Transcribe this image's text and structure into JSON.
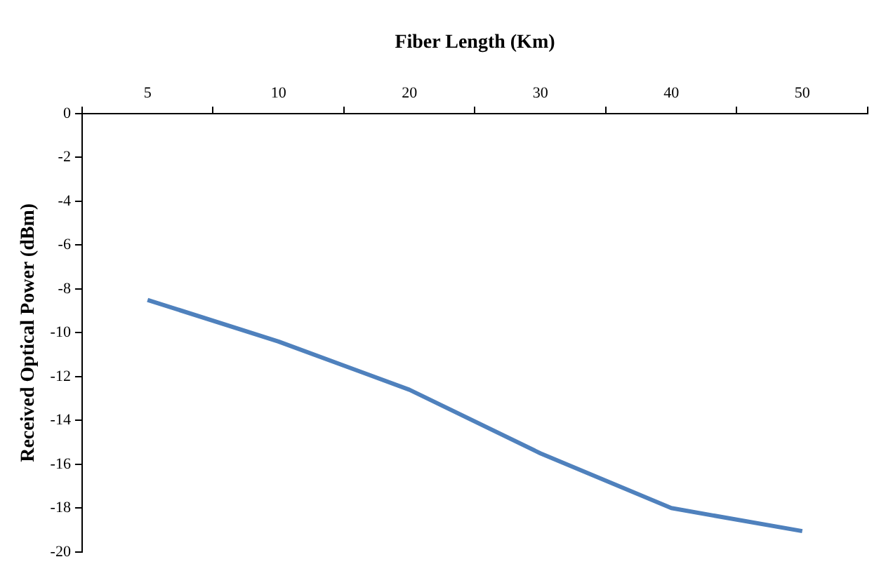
{
  "chart_data": {
    "type": "line",
    "xlabel": "Fiber Length (Km)",
    "ylabel": "Received Optical Power (dBm)",
    "categories": [
      "5",
      "10",
      "20",
      "30",
      "40",
      "50"
    ],
    "series": [
      {
        "color": "#4f81bd",
        "values": [
          -8.5,
          -10.4,
          -12.6,
          -15.5,
          -18,
          -19.05
        ]
      }
    ],
    "ylim": [
      -20,
      0
    ],
    "yticks": [
      -20,
      -18,
      -16,
      -14,
      -12,
      -10,
      -8,
      -6,
      -4,
      -2,
      0
    ],
    "grid": false,
    "legend": false,
    "marker": "none",
    "line_style": "solid"
  }
}
